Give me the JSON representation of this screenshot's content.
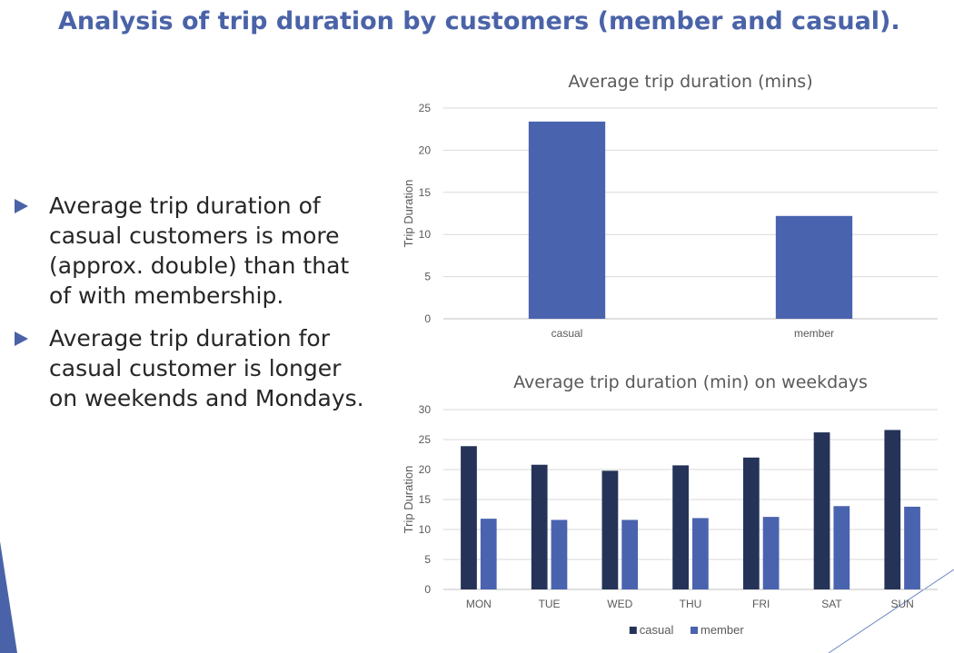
{
  "slide": {
    "title": "Analysis of trip duration by customers (member and casual).",
    "bullets": [
      "Average trip duration of casual customers is more (approx. double) than that of  with  membership.",
      " Average trip duration for casual customer is longer on weekends and Mondays."
    ],
    "colors": {
      "title": "#4a63a8",
      "bullet_arrow": "#4a63a8",
      "text": "#262626"
    },
    "icons": {
      "bullet": "triangle-right-icon"
    }
  },
  "chart_data": [
    {
      "type": "bar",
      "title": "Average trip duration (mins)",
      "ylabel": "Trip Duration",
      "xlabel": "",
      "categories": [
        "casual",
        "member"
      ],
      "values": [
        23.4,
        12.2
      ],
      "ylim": [
        0,
        25
      ],
      "yticks": [
        0,
        5,
        10,
        15,
        20,
        25
      ],
      "grid": true,
      "color": "#4a63ae"
    },
    {
      "type": "bar",
      "title": "Average trip duration (min) on weekdays",
      "ylabel": "Trip Duration",
      "xlabel": "",
      "categories": [
        "MON",
        "TUE",
        "WED",
        "THU",
        "FRI",
        "SAT",
        "SUN"
      ],
      "series": [
        {
          "name": "casual",
          "color": "#253358",
          "values": [
            23.9,
            20.8,
            19.8,
            20.7,
            22.0,
            26.2,
            26.6
          ]
        },
        {
          "name": "member",
          "color": "#4a63ae",
          "values": [
            11.8,
            11.6,
            11.6,
            11.9,
            12.1,
            13.9,
            13.8
          ]
        }
      ],
      "ylim": [
        0,
        30
      ],
      "yticks": [
        0,
        5,
        10,
        15,
        20,
        25,
        30
      ],
      "grid": true,
      "legend": "bottom"
    }
  ]
}
